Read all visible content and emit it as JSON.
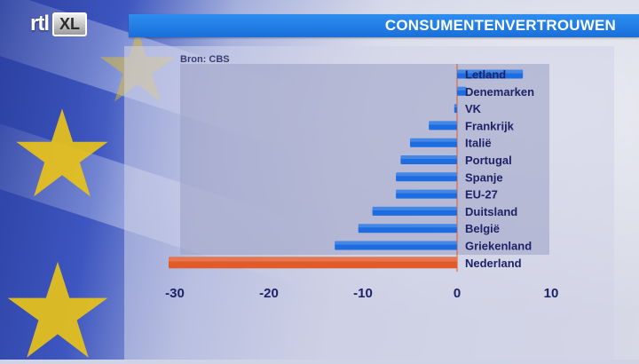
{
  "brand": {
    "rtl": "rtl",
    "xl": "XL"
  },
  "header": {
    "title": "CONSUMENTENVERTROUWEN"
  },
  "source": "Bron: CBS",
  "colors": {
    "bar": "#1d6de0",
    "highlight": "#e05a2a",
    "zero_line": "#e05a2a",
    "title_bar": "#1f77e6"
  },
  "chart_data": {
    "type": "bar",
    "orientation": "horizontal",
    "title": "CONSUMENTENVERTROUWEN",
    "categories": [
      "Letland",
      "Denemarken",
      "VK",
      "Frankrijk",
      "Italië",
      "Portugal",
      "Spanje",
      "EU-27",
      "Duitsland",
      "België",
      "Griekenland",
      "Nederland"
    ],
    "values": [
      7,
      1,
      -0.3,
      -3,
      -5,
      -6,
      -6.5,
      -6.5,
      -9,
      -10.5,
      -13,
      -31
    ],
    "highlight": "Nederland",
    "xlim": [
      -30,
      10
    ],
    "xticks": [
      "-30",
      "-20",
      "-10",
      "0",
      "10"
    ],
    "xtick_values": [
      -30,
      -20,
      -10,
      0,
      10
    ],
    "xlabel": "",
    "ylabel": "",
    "grid": false,
    "legend": "none"
  }
}
